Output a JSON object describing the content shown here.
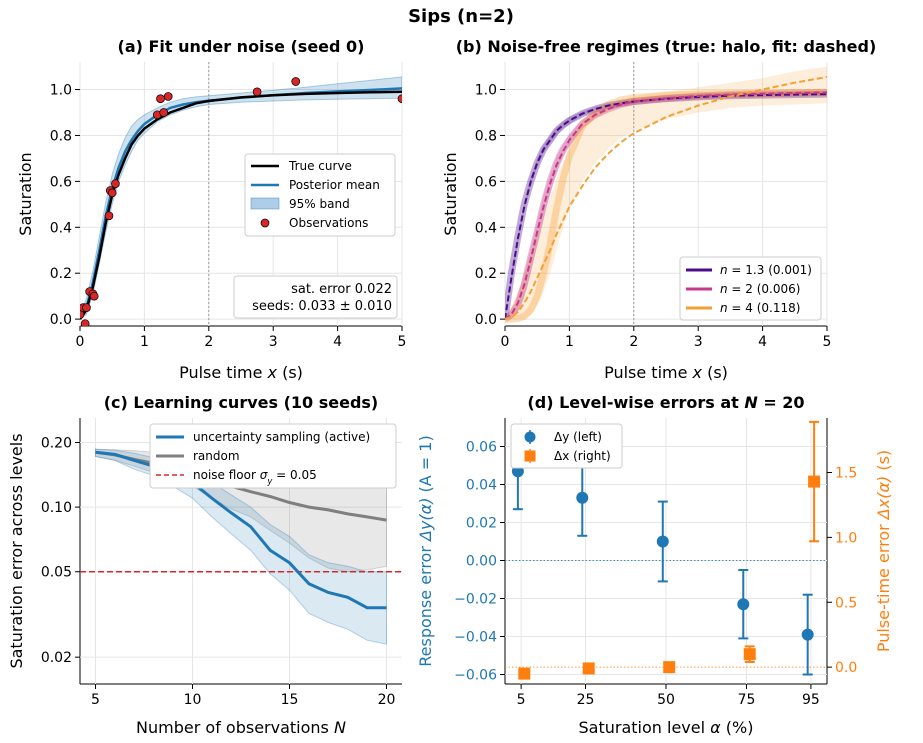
{
  "figure": {
    "title": "Sips (n=2)"
  },
  "chart_data": [
    {
      "id": "a",
      "type": "line",
      "title": "(a) Fit under noise (seed 0)",
      "xlabel": "Pulse time x (s)",
      "ylabel": "Saturation",
      "xlim": [
        0,
        5
      ],
      "ylim": [
        -0.03,
        1.12
      ],
      "xticks": [
        0,
        1,
        2,
        3,
        4,
        5
      ],
      "yticks": [
        0.0,
        0.2,
        0.4,
        0.6,
        0.8,
        1.0
      ],
      "grid": true,
      "vline_x": 2,
      "legend": {
        "placement": "center-right",
        "entries": [
          {
            "label": "True curve",
            "color": "#000000",
            "kind": "line"
          },
          {
            "label": "Posterior mean",
            "color": "#1f77b4",
            "kind": "line"
          },
          {
            "label": "95% band",
            "color": "#aecde8",
            "kind": "patch"
          },
          {
            "label": "Observations",
            "color": "#d62728",
            "kind": "marker"
          }
        ]
      },
      "true_curve": {
        "x": [
          0,
          0.1,
          0.2,
          0.3,
          0.4,
          0.5,
          0.6,
          0.7,
          0.8,
          0.9,
          1.0,
          1.2,
          1.4,
          1.6,
          1.8,
          2.0,
          2.5,
          3.0,
          3.5,
          4.0,
          4.5,
          5.0
        ],
        "y": [
          0.0,
          0.04,
          0.14,
          0.27,
          0.42,
          0.54,
          0.63,
          0.7,
          0.76,
          0.8,
          0.83,
          0.87,
          0.9,
          0.92,
          0.94,
          0.95,
          0.966,
          0.975,
          0.981,
          0.985,
          0.988,
          0.99
        ]
      },
      "posterior_mean": {
        "x": [
          0,
          0.1,
          0.2,
          0.3,
          0.4,
          0.5,
          0.6,
          0.7,
          0.8,
          0.9,
          1.0,
          1.2,
          1.4,
          1.6,
          1.8,
          2.0,
          2.5,
          3.0,
          3.5,
          4.0,
          4.5,
          5.0
        ],
        "y": [
          0.0,
          0.05,
          0.16,
          0.3,
          0.45,
          0.57,
          0.66,
          0.73,
          0.78,
          0.82,
          0.85,
          0.89,
          0.92,
          0.935,
          0.945,
          0.952,
          0.965,
          0.975,
          0.985,
          0.992,
          0.998,
          1.005
        ]
      },
      "band": {
        "x": [
          0,
          0.1,
          0.2,
          0.3,
          0.4,
          0.5,
          0.6,
          0.7,
          0.8,
          0.9,
          1.0,
          1.2,
          1.4,
          1.6,
          1.8,
          2.0,
          2.5,
          3.0,
          3.5,
          4.0,
          4.5,
          5.0
        ],
        "lower": [
          0.0,
          0.02,
          0.11,
          0.24,
          0.38,
          0.5,
          0.6,
          0.67,
          0.73,
          0.78,
          0.81,
          0.86,
          0.89,
          0.91,
          0.925,
          0.935,
          0.945,
          0.95,
          0.955,
          0.958,
          0.96,
          0.962
        ],
        "upper": [
          0.02,
          0.09,
          0.21,
          0.36,
          0.51,
          0.63,
          0.72,
          0.79,
          0.84,
          0.87,
          0.89,
          0.92,
          0.945,
          0.96,
          0.968,
          0.973,
          0.985,
          0.997,
          1.01,
          1.025,
          1.04,
          1.055
        ]
      },
      "observations": {
        "x": [
          0.0,
          0.05,
          0.08,
          0.1,
          0.15,
          0.2,
          0.22,
          0.45,
          0.47,
          0.5,
          0.55,
          1.2,
          1.25,
          1.3,
          1.37,
          2.75,
          3.35,
          5.0
        ],
        "y": [
          0.02,
          0.05,
          -0.02,
          0.05,
          0.12,
          0.11,
          0.1,
          0.45,
          0.56,
          0.55,
          0.59,
          0.89,
          0.96,
          0.9,
          0.97,
          0.99,
          1.035,
          0.96
        ]
      },
      "annotation": [
        "sat. error 0.022",
        "seeds: 0.033 ± 0.010"
      ]
    },
    {
      "id": "b",
      "type": "line",
      "title": "(b) Noise-free regimes (true: halo, fit: dashed)",
      "xlabel": "Pulse time x (s)",
      "ylabel": "Saturation",
      "xlim": [
        0,
        5
      ],
      "ylim": [
        -0.03,
        1.12
      ],
      "xticks": [
        0,
        1,
        2,
        3,
        4,
        5
      ],
      "yticks": [
        0.0,
        0.2,
        0.4,
        0.6,
        0.8,
        1.0
      ],
      "grid": true,
      "vline_x": 2,
      "legend": {
        "placement": "bottom-right"
      },
      "x": [
        0,
        0.1,
        0.2,
        0.3,
        0.4,
        0.5,
        0.6,
        0.7,
        0.8,
        0.9,
        1.0,
        1.2,
        1.4,
        1.6,
        1.8,
        2.0,
        2.5,
        3.0,
        3.5,
        4.0,
        4.5,
        5.0
      ],
      "series": [
        {
          "name": "n = 1.3 (0.001)",
          "n_label": "n",
          "value_label": " = 1.3 (0.001)",
          "color": "#4b0c8c",
          "true_y": [
            0.0,
            0.2,
            0.36,
            0.5,
            0.6,
            0.68,
            0.74,
            0.78,
            0.82,
            0.845,
            0.865,
            0.895,
            0.915,
            0.93,
            0.94,
            0.948,
            0.96,
            0.968,
            0.973,
            0.976,
            0.978,
            0.98
          ],
          "fit_y": [
            0.0,
            0.18,
            0.35,
            0.49,
            0.6,
            0.68,
            0.74,
            0.78,
            0.82,
            0.845,
            0.865,
            0.895,
            0.915,
            0.93,
            0.94,
            0.948,
            0.96,
            0.968,
            0.973,
            0.976,
            0.978,
            0.98
          ],
          "band_lower": [
            0.0,
            0.16,
            0.33,
            0.47,
            0.58,
            0.66,
            0.72,
            0.765,
            0.8,
            0.83,
            0.85,
            0.885,
            0.905,
            0.92,
            0.932,
            0.94,
            0.952,
            0.96,
            0.965,
            0.968,
            0.97,
            0.972
          ],
          "band_upper": [
            0.0,
            0.2,
            0.37,
            0.51,
            0.62,
            0.7,
            0.76,
            0.8,
            0.835,
            0.86,
            0.88,
            0.905,
            0.925,
            0.94,
            0.95,
            0.957,
            0.968,
            0.976,
            0.981,
            0.984,
            0.986,
            0.988
          ]
        },
        {
          "name": "n = 2 (0.006)",
          "n_label": "n",
          "value_label": " = 2 (0.006)",
          "color": "#c8388a",
          "true_y": [
            0.0,
            0.02,
            0.06,
            0.15,
            0.27,
            0.38,
            0.5,
            0.6,
            0.68,
            0.74,
            0.78,
            0.85,
            0.89,
            0.915,
            0.935,
            0.948,
            0.962,
            0.972,
            0.978,
            0.982,
            0.985,
            0.987
          ],
          "fit_y": [
            0.0,
            0.02,
            0.07,
            0.15,
            0.26,
            0.38,
            0.49,
            0.59,
            0.67,
            0.73,
            0.78,
            0.85,
            0.89,
            0.915,
            0.935,
            0.948,
            0.962,
            0.972,
            0.978,
            0.982,
            0.985,
            0.987
          ],
          "band_lower": [
            0.0,
            0.0,
            0.03,
            0.1,
            0.2,
            0.32,
            0.44,
            0.54,
            0.63,
            0.7,
            0.75,
            0.83,
            0.875,
            0.905,
            0.925,
            0.94,
            0.955,
            0.965,
            0.972,
            0.976,
            0.979,
            0.981
          ],
          "band_upper": [
            0.0,
            0.05,
            0.11,
            0.2,
            0.31,
            0.43,
            0.54,
            0.63,
            0.71,
            0.76,
            0.81,
            0.87,
            0.905,
            0.928,
            0.945,
            0.956,
            0.97,
            0.979,
            0.985,
            0.989,
            0.991,
            0.993
          ]
        },
        {
          "name": "n = 4 (0.118)",
          "n_label": "n",
          "value_label": " = 4 (0.118)",
          "color": "#f5a036",
          "true_y": [
            0.0,
            0.0,
            0.003,
            0.012,
            0.04,
            0.1,
            0.2,
            0.33,
            0.48,
            0.61,
            0.71,
            0.84,
            0.9,
            0.935,
            0.955,
            0.965,
            0.975,
            0.98,
            0.983,
            0.985,
            0.987,
            0.989
          ],
          "fit_y": [
            0.0,
            0.01,
            0.03,
            0.07,
            0.12,
            0.18,
            0.24,
            0.3,
            0.37,
            0.43,
            0.49,
            0.58,
            0.66,
            0.72,
            0.77,
            0.81,
            0.88,
            0.93,
            0.97,
            1.0,
            1.03,
            1.055
          ],
          "band_lower": [
            0.0,
            0.0,
            0.0,
            0.0,
            0.02,
            0.06,
            0.12,
            0.2,
            0.3,
            0.4,
            0.48,
            0.6,
            0.68,
            0.74,
            0.79,
            0.82,
            0.87,
            0.9,
            0.92,
            0.93,
            0.935,
            0.94
          ],
          "band_upper": [
            0.0,
            0.05,
            0.12,
            0.2,
            0.28,
            0.36,
            0.44,
            0.53,
            0.61,
            0.68,
            0.74,
            0.83,
            0.89,
            0.93,
            0.955,
            0.97,
            0.99,
            1.01,
            1.03,
            1.05,
            1.08,
            1.1
          ]
        }
      ]
    },
    {
      "id": "c",
      "type": "line",
      "title": "(c) Learning curves (10 seeds)",
      "xlabel": "Number of observations N",
      "ylabel": "Saturation error across levels",
      "xlim": [
        4.2,
        20.8
      ],
      "ylim": [
        0.015,
        0.26
      ],
      "yscale": "log",
      "xticks": [
        5,
        10,
        15,
        20
      ],
      "yticks": [
        0.02,
        0.05,
        0.1,
        0.2
      ],
      "ytick_labels": [
        "0.02",
        "0.05",
        "0.10",
        "0.20"
      ],
      "grid": true,
      "hline_y": 0.05,
      "legend": {
        "placement": "top-right"
      },
      "x": [
        5,
        6,
        7,
        8,
        9,
        10,
        11,
        12,
        13,
        14,
        15,
        16,
        17,
        18,
        19,
        20
      ],
      "series": [
        {
          "name": "uncertainty sampling (active)",
          "color": "#1f77b4",
          "values": [
            0.18,
            0.176,
            0.165,
            0.155,
            0.143,
            0.13,
            0.11,
            0.094,
            0.081,
            0.063,
            0.055,
            0.044,
            0.04,
            0.038,
            0.034,
            0.034
          ],
          "band_lower": [
            0.172,
            0.165,
            0.15,
            0.14,
            0.125,
            0.11,
            0.09,
            0.075,
            0.063,
            0.049,
            0.041,
            0.032,
            0.029,
            0.027,
            0.024,
            0.023
          ],
          "band_upper": [
            0.186,
            0.184,
            0.178,
            0.17,
            0.16,
            0.148,
            0.13,
            0.114,
            0.1,
            0.083,
            0.073,
            0.06,
            0.055,
            0.053,
            0.05,
            0.05
          ]
        },
        {
          "name": "random",
          "color": "#7f7f7f",
          "values": [
            0.18,
            0.175,
            0.167,
            0.16,
            0.15,
            0.14,
            0.13,
            0.125,
            0.118,
            0.112,
            0.105,
            0.1,
            0.097,
            0.093,
            0.09,
            0.087
          ],
          "band_lower": [
            0.172,
            0.165,
            0.155,
            0.145,
            0.135,
            0.125,
            0.11,
            0.098,
            0.09,
            0.078,
            0.068,
            0.058,
            0.052,
            0.05,
            0.051,
            0.053
          ],
          "band_upper": [
            0.186,
            0.185,
            0.183,
            0.18,
            0.18,
            0.18,
            0.18,
            0.18,
            0.18,
            0.18,
            0.18,
            0.18,
            0.18,
            0.18,
            0.18,
            0.18
          ]
        }
      ],
      "noise_floor": {
        "label_prefix": "noise floor ",
        "label_sym": "σ",
        "label_sub": "y",
        "label_suffix": " = 0.05",
        "value": 0.05,
        "color": "#d62728"
      }
    },
    {
      "id": "d",
      "type": "scatter",
      "title_prefix": "(d) Level-wise errors at ",
      "title_sym": "N",
      "title_suffix": " = 20",
      "xlabel_prefix": "Saturation level ",
      "xlabel_sym": "α",
      "xlabel_suffix": " (%)",
      "ylabel_left_prefix": "Response error ",
      "ylabel_left_sym": "Δy(α)",
      "ylabel_left_suffix": "  (A = 1)",
      "ylabel_right_prefix": "Pulse-time error ",
      "ylabel_right_sym": "Δx(α)",
      "ylabel_right_suffix": "  (s)",
      "xlim": [
        0,
        100
      ],
      "ylim_left": [
        -0.065,
        0.075
      ],
      "ylim_right": [
        -0.13,
        1.92
      ],
      "xticks": [
        5,
        25,
        50,
        75,
        95
      ],
      "yticks_left": [
        -0.06,
        -0.04,
        -0.02,
        0.0,
        0.02,
        0.04,
        0.06
      ],
      "ytick_labels_left": [
        "−0.06",
        "−0.04",
        "−0.02",
        "0.00",
        "0.02",
        "0.04",
        "0.06"
      ],
      "yticks_right": [
        0.0,
        0.5,
        1.0,
        1.5
      ],
      "ytick_labels_right": [
        "0.0",
        "0.5",
        "1.0",
        "1.5"
      ],
      "grid": true,
      "legend": {
        "placement": "top-left"
      },
      "series": [
        {
          "name": "Δy (left)",
          "axis": "left",
          "color": "#1f77b4",
          "marker": "circle",
          "x": [
            4,
            24,
            49,
            74,
            94
          ],
          "values": [
            0.047,
            0.033,
            0.01,
            -0.023,
            -0.039
          ],
          "err": [
            0.02,
            0.02,
            0.021,
            0.018,
            0.021
          ]
        },
        {
          "name": "Δx (right)",
          "axis": "right",
          "color": "#ff7f0e",
          "marker": "square",
          "x": [
            6,
            26,
            51,
            76,
            96
          ],
          "values": [
            -0.05,
            -0.01,
            0.0,
            0.1,
            1.43
          ],
          "err": [
            0.01,
            0.01,
            0.01,
            0.06,
            0.46
          ]
        }
      ],
      "ref_left_y": 0.0,
      "ref_right_y": 0.0
    }
  ]
}
